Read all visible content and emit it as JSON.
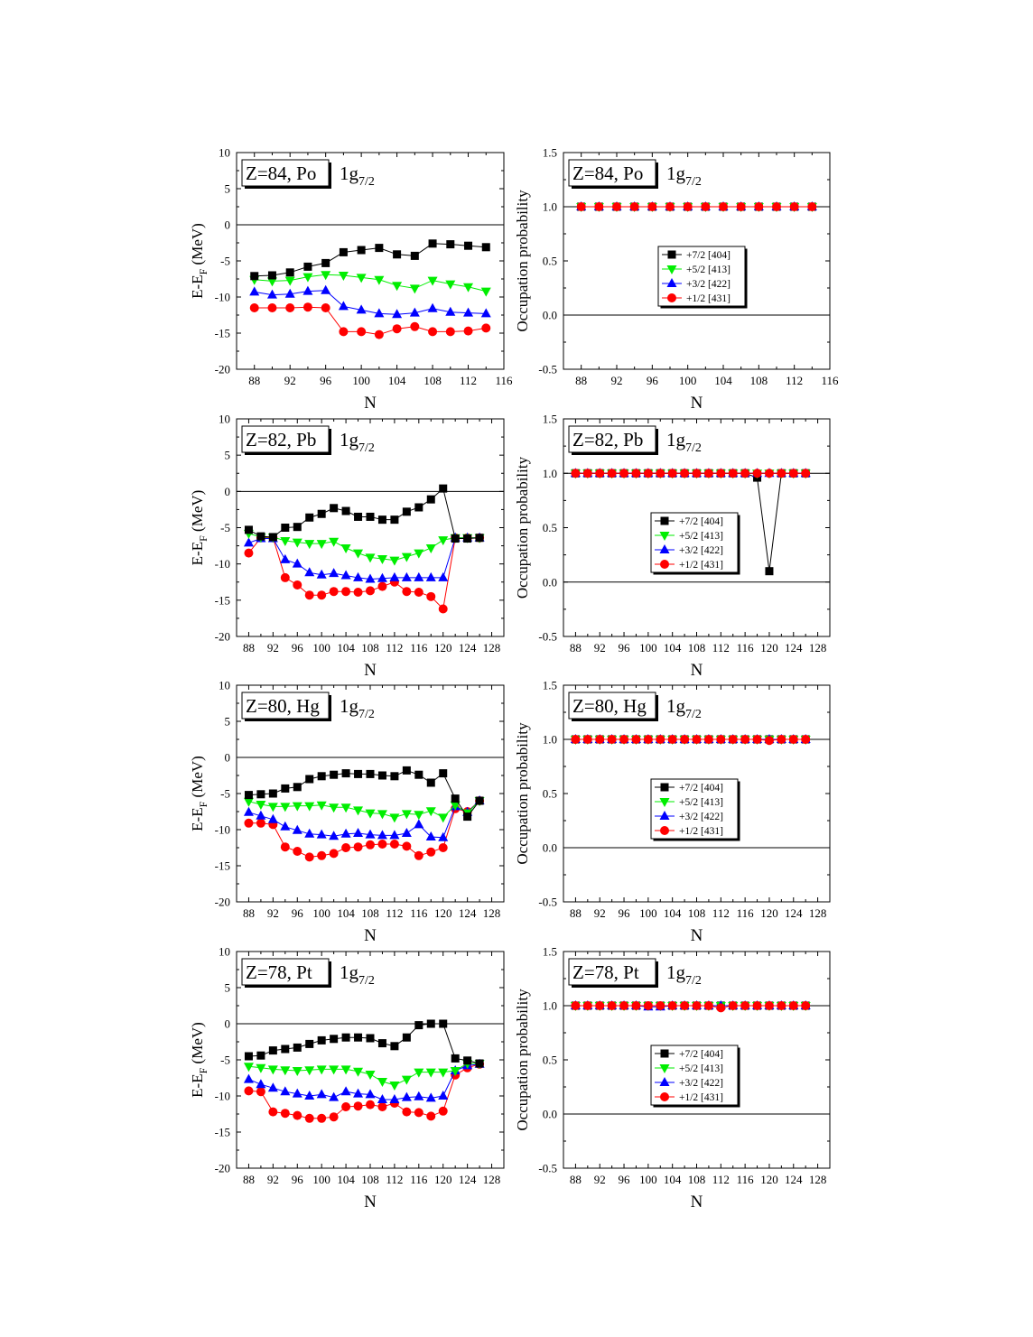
{
  "figure": {
    "x_label": "N",
    "y_label_left_main": "E-E",
    "y_label_left_sub": "F",
    "y_label_left_unit": " (MeV)",
    "y_label_right": "Occupation probability",
    "orbital_main": "1g",
    "orbital_sub": "7/2"
  },
  "colors": {
    "+7/2 [404]": "#000000",
    "+5/2 [413]": "#00ee00",
    "+3/2 [422]": "#0000ff",
    "+1/2 [431]": "#ff0000"
  },
  "markers": {
    "+7/2 [404]": "square",
    "+5/2 [413]": "triangle-down",
    "+3/2 [422]": "triangle-up",
    "+1/2 [431]": "circle"
  },
  "chart_data": [
    {
      "type": "line",
      "row": 0,
      "col": 0,
      "label": "Z=84, Po",
      "ylabel": "E-EF (MeV)",
      "xlabel": "N",
      "xlim": [
        86,
        116
      ],
      "ylim": [
        -20,
        10
      ],
      "xticks": [
        88,
        92,
        96,
        100,
        104,
        108,
        112,
        116
      ],
      "yticks": [
        -20,
        -15,
        -10,
        -5,
        0,
        5,
        10
      ],
      "hline": 0,
      "x": [
        88,
        90,
        92,
        94,
        96,
        98,
        100,
        102,
        104,
        106,
        108,
        110,
        112,
        114
      ],
      "series": [
        {
          "name": "+7/2 [404]",
          "values": [
            -7.1,
            -7.0,
            -6.6,
            -5.8,
            -5.3,
            -3.8,
            -3.5,
            -3.2,
            -4.1,
            -4.3,
            -2.6,
            -2.7,
            -2.9,
            -3.1
          ]
        },
        {
          "name": "+5/2 [413]",
          "values": [
            -7.6,
            -7.8,
            -7.7,
            -7.2,
            -6.9,
            -7.0,
            -7.3,
            -7.6,
            -8.4,
            -8.8,
            -7.7,
            -8.2,
            -8.6,
            -9.2
          ]
        },
        {
          "name": "+3/2 [422]",
          "values": [
            -9.3,
            -9.7,
            -9.6,
            -9.2,
            -9.1,
            -11.3,
            -11.8,
            -12.3,
            -12.4,
            -12.2,
            -11.6,
            -12.1,
            -12.2,
            -12.3
          ]
        },
        {
          "name": "+1/2 [431]",
          "values": [
            -11.5,
            -11.5,
            -11.5,
            -11.4,
            -11.5,
            -14.8,
            -14.8,
            -15.2,
            -14.4,
            -14.1,
            -14.8,
            -14.8,
            -14.7,
            -14.3
          ]
        }
      ]
    },
    {
      "type": "line",
      "row": 0,
      "col": 1,
      "label": "Z=84, Po",
      "ylabel": "Occupation probability",
      "xlabel": "N",
      "xlim": [
        86,
        116
      ],
      "ylim": [
        -0.5,
        1.5
      ],
      "xticks": [
        88,
        92,
        96,
        100,
        104,
        108,
        112,
        116
      ],
      "yticks": [
        -0.5,
        0.0,
        0.5,
        1.0,
        1.5
      ],
      "hlines": [
        0,
        1
      ],
      "legend": "center",
      "x": [
        88,
        90,
        92,
        94,
        96,
        98,
        100,
        102,
        104,
        106,
        108,
        110,
        112,
        114
      ],
      "series": [
        {
          "name": "+7/2 [404]",
          "values": [
            1,
            1,
            1,
            1,
            1,
            1,
            1,
            1,
            1,
            1,
            1,
            1,
            1,
            1
          ]
        },
        {
          "name": "+5/2 [413]",
          "values": [
            1,
            1,
            1,
            1,
            1,
            1,
            1,
            1,
            1,
            1,
            1,
            1,
            1,
            1
          ]
        },
        {
          "name": "+3/2 [422]",
          "values": [
            1,
            1,
            1,
            1,
            1,
            1,
            1,
            1,
            1,
            1,
            1,
            1,
            1,
            1
          ]
        },
        {
          "name": "+1/2 [431]",
          "values": [
            1,
            1,
            1,
            1,
            1,
            1,
            1,
            1,
            1,
            1,
            1,
            1,
            1,
            1
          ]
        }
      ]
    },
    {
      "type": "line",
      "row": 1,
      "col": 0,
      "label": "Z=82, Pb",
      "ylabel": "E-EF (MeV)",
      "xlabel": "N",
      "xlim": [
        86,
        130
      ],
      "ylim": [
        -20,
        10
      ],
      "xticks": [
        88,
        92,
        96,
        100,
        104,
        108,
        112,
        116,
        120,
        124,
        128
      ],
      "yticks": [
        -20,
        -15,
        -10,
        -5,
        0,
        5,
        10
      ],
      "hline": 0,
      "x": [
        88,
        90,
        92,
        94,
        96,
        98,
        100,
        102,
        104,
        106,
        108,
        110,
        112,
        114,
        116,
        118,
        120,
        122,
        124,
        126
      ],
      "series": [
        {
          "name": "+7/2 [404]",
          "values": [
            -5.3,
            -6.2,
            -6.3,
            -5.0,
            -4.9,
            -3.6,
            -3.1,
            -2.3,
            -2.7,
            -3.5,
            -3.5,
            -3.9,
            -3.9,
            -2.8,
            -2.2,
            -1.1,
            0.4,
            -6.5,
            -6.5,
            -6.4
          ]
        },
        {
          "name": "+5/2 [413]",
          "values": [
            -5.8,
            -6.3,
            -6.3,
            -6.8,
            -7.0,
            -7.2,
            -7.2,
            -6.9,
            -7.8,
            -8.5,
            -9.1,
            -9.3,
            -9.5,
            -9.0,
            -8.5,
            -7.8,
            -6.7,
            -6.4,
            -6.4,
            -6.4
          ]
        },
        {
          "name": "+3/2 [422]",
          "values": [
            -7.1,
            -6.5,
            -6.5,
            -9.4,
            -10.0,
            -11.2,
            -11.5,
            -11.3,
            -11.6,
            -11.9,
            -12.1,
            -12.0,
            -11.9,
            -11.9,
            -11.9,
            -11.9,
            -11.9,
            -6.4,
            -6.4,
            -6.4
          ]
        },
        {
          "name": "+1/2 [431]",
          "values": [
            -8.5,
            -6.4,
            -6.4,
            -11.9,
            -12.9,
            -14.3,
            -14.3,
            -13.8,
            -13.8,
            -13.9,
            -13.7,
            -13.1,
            -12.5,
            -13.8,
            -13.9,
            -14.5,
            -16.2,
            -6.4,
            -6.4,
            -6.4
          ]
        }
      ]
    },
    {
      "type": "line",
      "row": 1,
      "col": 1,
      "label": "Z=82, Pb",
      "ylabel": "Occupation probability",
      "xlabel": "N",
      "xlim": [
        86,
        130
      ],
      "ylim": [
        -0.5,
        1.5
      ],
      "xticks": [
        88,
        92,
        96,
        100,
        104,
        108,
        112,
        116,
        120,
        124,
        128
      ],
      "yticks": [
        -0.5,
        0.0,
        0.5,
        1.0,
        1.5
      ],
      "hlines": [
        0,
        1
      ],
      "legend": "center",
      "x": [
        88,
        90,
        92,
        94,
        96,
        98,
        100,
        102,
        104,
        106,
        108,
        110,
        112,
        114,
        116,
        118,
        120,
        122,
        124,
        126
      ],
      "series": [
        {
          "name": "+7/2 [404]",
          "values": [
            1,
            1,
            1,
            1,
            1,
            1,
            1,
            1,
            1,
            1,
            1,
            1,
            1,
            1,
            1,
            0.96,
            0.1,
            1,
            1,
            1
          ]
        },
        {
          "name": "+5/2 [413]",
          "values": [
            1,
            1,
            1,
            1,
            1,
            1,
            1,
            1,
            1,
            1,
            1,
            1,
            1,
            1,
            1,
            1,
            1,
            1,
            1,
            1
          ]
        },
        {
          "name": "+3/2 [422]",
          "values": [
            1,
            1,
            1,
            1,
            1,
            1,
            1,
            1,
            1,
            1,
            1,
            1,
            1,
            1,
            1,
            1,
            1,
            1,
            1,
            1
          ]
        },
        {
          "name": "+1/2 [431]",
          "values": [
            1,
            1,
            1,
            1,
            1,
            1,
            1,
            1,
            1,
            1,
            1,
            1,
            1,
            1,
            1,
            1,
            1,
            1,
            1,
            1
          ]
        }
      ]
    },
    {
      "type": "line",
      "row": 2,
      "col": 0,
      "label": "Z=80, Hg",
      "ylabel": "E-EF (MeV)",
      "xlabel": "N",
      "xlim": [
        86,
        130
      ],
      "ylim": [
        -20,
        10
      ],
      "xticks": [
        88,
        92,
        96,
        100,
        104,
        108,
        112,
        116,
        120,
        124,
        128
      ],
      "yticks": [
        -20,
        -15,
        -10,
        -5,
        0,
        5,
        10
      ],
      "hline": 0,
      "x": [
        88,
        90,
        92,
        94,
        96,
        98,
        100,
        102,
        104,
        106,
        108,
        110,
        112,
        114,
        116,
        118,
        120,
        122,
        124,
        126
      ],
      "series": [
        {
          "name": "+7/2 [404]",
          "values": [
            -5.2,
            -5.1,
            -5.0,
            -4.3,
            -4.1,
            -3.0,
            -2.6,
            -2.4,
            -2.2,
            -2.3,
            -2.3,
            -2.5,
            -2.6,
            -1.8,
            -2.4,
            -3.5,
            -2.2,
            -5.7,
            -8.2,
            -6.0
          ]
        },
        {
          "name": "+5/2 [413]",
          "values": [
            -6.1,
            -6.5,
            -6.8,
            -6.8,
            -6.7,
            -6.7,
            -6.6,
            -6.9,
            -6.9,
            -7.3,
            -7.7,
            -7.8,
            -8.3,
            -7.8,
            -7.9,
            -7.4,
            -8.3,
            -6.6,
            -7.7,
            -6.0
          ]
        },
        {
          "name": "+3/2 [422]",
          "values": [
            -7.6,
            -8.1,
            -8.6,
            -9.6,
            -10.1,
            -10.6,
            -10.7,
            -10.9,
            -10.6,
            -10.5,
            -10.7,
            -10.8,
            -10.8,
            -10.5,
            -9.3,
            -11.0,
            -11.1,
            -6.8,
            -7.6,
            -6.0
          ]
        },
        {
          "name": "+1/2 [431]",
          "values": [
            -9.1,
            -9.1,
            -9.3,
            -12.4,
            -13.0,
            -13.8,
            -13.6,
            -13.3,
            -12.5,
            -12.4,
            -12.1,
            -12.0,
            -12.0,
            -12.3,
            -13.6,
            -13.1,
            -12.5,
            -7.1,
            -7.5,
            -6.0
          ]
        }
      ]
    },
    {
      "type": "line",
      "row": 2,
      "col": 1,
      "label": "Z=80, Hg",
      "ylabel": "Occupation probability",
      "xlabel": "N",
      "xlim": [
        86,
        130
      ],
      "ylim": [
        -0.5,
        1.5
      ],
      "xticks": [
        88,
        92,
        96,
        100,
        104,
        108,
        112,
        116,
        120,
        124,
        128
      ],
      "yticks": [
        -0.5,
        0.0,
        0.5,
        1.0,
        1.5
      ],
      "hlines": [
        0,
        1
      ],
      "legend": "center",
      "x": [
        88,
        90,
        92,
        94,
        96,
        98,
        100,
        102,
        104,
        106,
        108,
        110,
        112,
        114,
        116,
        118,
        120,
        122,
        124,
        126
      ],
      "series": [
        {
          "name": "+7/2 [404]",
          "values": [
            1,
            1,
            1,
            1,
            1,
            1,
            1,
            1,
            1,
            1,
            1,
            1,
            1,
            1,
            1,
            1,
            1,
            1,
            1,
            1
          ]
        },
        {
          "name": "+5/2 [413]",
          "values": [
            1,
            1,
            1,
            1,
            1,
            1,
            1,
            1,
            1,
            1,
            1,
            1,
            1,
            1,
            1,
            1,
            1,
            1,
            1,
            1
          ]
        },
        {
          "name": "+3/2 [422]",
          "values": [
            1,
            1,
            1,
            1,
            1,
            1,
            1,
            1,
            1,
            1,
            1,
            1,
            1,
            1,
            1,
            1,
            1,
            1,
            1,
            1
          ]
        },
        {
          "name": "+1/2 [431]",
          "values": [
            1,
            1,
            1,
            1,
            1,
            1,
            1,
            1,
            1,
            1,
            1,
            1,
            1,
            1,
            1,
            1,
            0.99,
            1,
            1,
            1
          ]
        }
      ]
    },
    {
      "type": "line",
      "row": 3,
      "col": 0,
      "label": "Z=78, Pt",
      "ylabel": "E-EF (MeV)",
      "xlabel": "N",
      "xlim": [
        86,
        130
      ],
      "ylim": [
        -20,
        10
      ],
      "xticks": [
        88,
        92,
        96,
        100,
        104,
        108,
        112,
        116,
        120,
        124,
        128
      ],
      "yticks": [
        -20,
        -15,
        -10,
        -5,
        0,
        5,
        10
      ],
      "hline": 0,
      "x": [
        88,
        90,
        92,
        94,
        96,
        98,
        100,
        102,
        104,
        106,
        108,
        110,
        112,
        114,
        116,
        118,
        120,
        122,
        124,
        126
      ],
      "series": [
        {
          "name": "+7/2 [404]",
          "values": [
            -4.5,
            -4.4,
            -3.7,
            -3.5,
            -3.3,
            -2.8,
            -2.3,
            -2.1,
            -1.9,
            -1.9,
            -2.0,
            -2.7,
            -3.1,
            -1.9,
            -0.2,
            0.0,
            0.0,
            -4.8,
            -5.1,
            -5.5
          ]
        },
        {
          "name": "+5/2 [413]",
          "values": [
            -5.9,
            -6.1,
            -6.3,
            -6.4,
            -6.5,
            -6.4,
            -6.3,
            -6.3,
            -6.3,
            -6.6,
            -7.0,
            -8.0,
            -8.5,
            -7.7,
            -6.7,
            -6.7,
            -6.7,
            -6.5,
            -5.5,
            -5.5
          ]
        },
        {
          "name": "+3/2 [422]",
          "values": [
            -7.7,
            -8.4,
            -8.9,
            -9.4,
            -9.7,
            -10.0,
            -9.8,
            -10.2,
            -9.4,
            -9.7,
            -9.8,
            -10.5,
            -10.5,
            -10.2,
            -10.1,
            -10.3,
            -10.0,
            -6.5,
            -5.8,
            -5.6
          ]
        },
        {
          "name": "+1/2 [431]",
          "values": [
            -9.3,
            -9.4,
            -12.2,
            -12.4,
            -12.7,
            -13.1,
            -13.1,
            -12.9,
            -11.5,
            -11.4,
            -11.2,
            -11.5,
            -11.0,
            -12.2,
            -12.3,
            -12.8,
            -12.1,
            -7.1,
            -6.1,
            -5.6
          ]
        }
      ]
    },
    {
      "type": "line",
      "row": 3,
      "col": 1,
      "label": "Z=78, Pt",
      "ylabel": "Occupation probability",
      "xlabel": "N",
      "xlim": [
        86,
        130
      ],
      "ylim": [
        -0.5,
        1.5
      ],
      "xticks": [
        88,
        92,
        96,
        100,
        104,
        108,
        112,
        116,
        120,
        124,
        128
      ],
      "yticks": [
        -0.5,
        0.0,
        0.5,
        1.0,
        1.5
      ],
      "hlines": [
        0,
        1
      ],
      "legend": "center",
      "x": [
        88,
        90,
        92,
        94,
        96,
        98,
        100,
        102,
        104,
        106,
        108,
        110,
        112,
        114,
        116,
        118,
        120,
        122,
        124,
        126
      ],
      "series": [
        {
          "name": "+7/2 [404]",
          "values": [
            1,
            1,
            1,
            1,
            1,
            1,
            1,
            1,
            1,
            1,
            1,
            1,
            1,
            1,
            1,
            1,
            1,
            1,
            1,
            1
          ]
        },
        {
          "name": "+5/2 [413]",
          "values": [
            1,
            1,
            1,
            1,
            1,
            1,
            1,
            1,
            1,
            1,
            1,
            1,
            1,
            1,
            1,
            1,
            1,
            1,
            1,
            1
          ]
        },
        {
          "name": "+3/2 [422]",
          "values": [
            1,
            1,
            1,
            1,
            1,
            1,
            0.99,
            0.99,
            1,
            1,
            1,
            1,
            1,
            1,
            1,
            1,
            1,
            1,
            1,
            1
          ]
        },
        {
          "name": "+1/2 [431]",
          "values": [
            1,
            1,
            1,
            1,
            1,
            1,
            1,
            1,
            1,
            1,
            1,
            1,
            0.98,
            1,
            1,
            1,
            1,
            1,
            1,
            1
          ]
        }
      ]
    }
  ]
}
